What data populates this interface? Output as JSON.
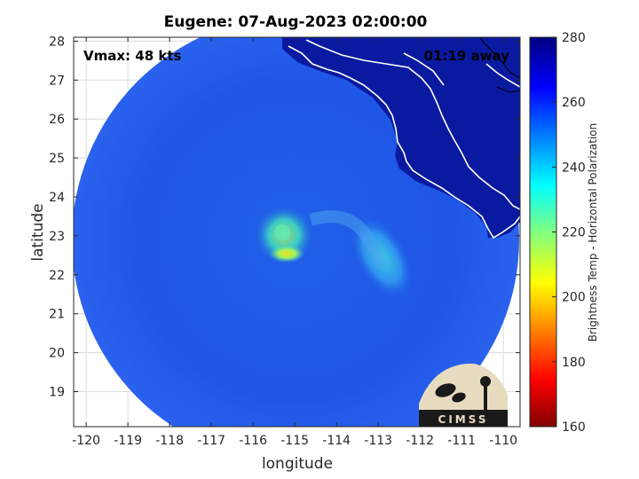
{
  "title": "Eugene: 07-Aug-2023 02:00:00",
  "annotations": {
    "vmax": "Vmax: 48 kts",
    "away": "01:19 away"
  },
  "axes": {
    "xlabel": "longitude",
    "ylabel": "latitude",
    "xlim": [
      -120.3,
      -109.6
    ],
    "ylim": [
      18.1,
      28.1
    ],
    "xticks": [
      -120,
      -119,
      -118,
      -117,
      -116,
      -115,
      -114,
      -113,
      -112,
      -111,
      -110
    ],
    "yticks": [
      19,
      20,
      21,
      22,
      23,
      24,
      25,
      26,
      27,
      28
    ],
    "grid": true
  },
  "colorbar": {
    "label": "Brightness Temp - Horizontal Polarization",
    "range": [
      160,
      280
    ],
    "ticks": [
      160,
      180,
      200,
      220,
      240,
      260,
      280
    ],
    "colormap": "jet"
  },
  "logo": {
    "text": "CIMSS"
  },
  "chart_data": {
    "type": "heatmap",
    "title": "Eugene: 07-Aug-2023 02:00:00",
    "xlabel": "longitude",
    "ylabel": "latitude",
    "storm_center": {
      "lon": -115.2,
      "lat": 22.9
    },
    "swath_center": {
      "lon": -115.0,
      "lat": 23.0
    },
    "background_tb": 262,
    "land_tb": 278,
    "features": [
      {
        "name": "eye-ring",
        "lon": -115.3,
        "lat": 23.0,
        "tb": 238
      },
      {
        "name": "warm-core",
        "lon": -115.0,
        "lat": 22.5,
        "tb": 225
      },
      {
        "name": "outer-band",
        "lon": -112.8,
        "lat": 22.3,
        "tb": 240
      }
    ]
  }
}
